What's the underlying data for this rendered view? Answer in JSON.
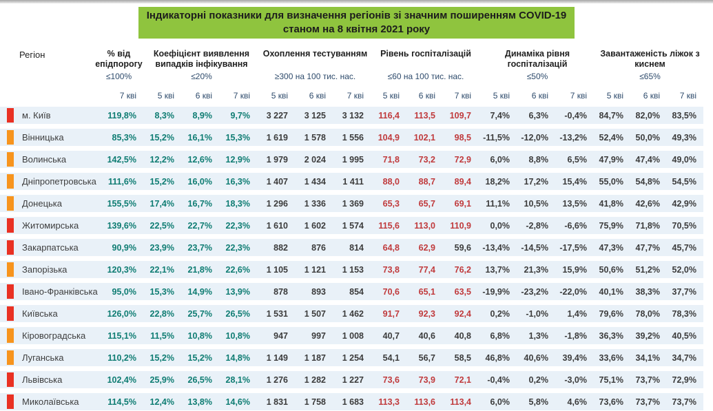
{
  "title": {
    "line1": "Індикаторні показники для визначення регіонів зі значним поширенням COVID-19",
    "line2": "станом на 8 квітня 2021 року"
  },
  "colors": {
    "title_highlight": "#8fc43e",
    "header_navy": "#2d4a6b",
    "row_bg": "#e9f1f8",
    "green_value": "#0e7c72",
    "red_value": "#c03a3c",
    "marker_red": "#e93123",
    "marker_orange": "#f7941d"
  },
  "columns": {
    "region_label": "Регіон",
    "groups": [
      {
        "title": "% від епідпорогу",
        "threshold": "≤100%",
        "dates": [
          "7 кві"
        ]
      },
      {
        "title": "Коефіцієнт виявлення випадків інфікування",
        "threshold": "≤20%",
        "dates": [
          "5 кві",
          "6 кві",
          "7 кві"
        ]
      },
      {
        "title": "Охоплення тестуванням",
        "threshold": "≥300 на 100 тис. нас.",
        "dates": [
          "5 кві",
          "6 кві",
          "7 кві"
        ]
      },
      {
        "title": "Рівень госпіталізацій",
        "threshold": "≤60 на 100 тис. нас.",
        "dates": [
          "5 кві",
          "6 кві",
          "7 кві"
        ]
      },
      {
        "title": "Динаміка рівня госпіталізацій",
        "threshold": "≤50%",
        "dates": [
          "5 кві",
          "6 кві",
          "7 кві"
        ]
      },
      {
        "title": "Завантаженість ліжок з киснем",
        "threshold": "≤65%",
        "dates": [
          "5 кві",
          "6 кві",
          "7 кві"
        ]
      }
    ]
  },
  "table": {
    "hospitalization_red_threshold": 60,
    "marker_legend": {
      "red": "red-risk-marker",
      "orange": "orange-risk-marker"
    },
    "rows": [
      {
        "marker": "red",
        "region": "м. Київ",
        "epid": "119,8%",
        "coef": [
          "8,3%",
          "8,9%",
          "9,7%"
        ],
        "test": [
          "3 227",
          "3 125",
          "3 132"
        ],
        "hosp": [
          "116,4",
          "113,5",
          "109,7"
        ],
        "dyn": [
          "7,4%",
          "6,3%",
          "-0,4%"
        ],
        "beds": [
          "84,7%",
          "82,0%",
          "83,5%"
        ]
      },
      {
        "marker": "orange",
        "region": "Вінницька",
        "epid": "85,3%",
        "coef": [
          "15,2%",
          "16,1%",
          "15,3%"
        ],
        "test": [
          "1 619",
          "1 578",
          "1 556"
        ],
        "hosp": [
          "104,9",
          "102,1",
          "98,5"
        ],
        "dyn": [
          "-11,5%",
          "-12,0%",
          "-13,2%"
        ],
        "beds": [
          "52,4%",
          "50,0%",
          "49,3%"
        ]
      },
      {
        "marker": "orange",
        "region": "Волинська",
        "epid": "142,5%",
        "coef": [
          "12,2%",
          "12,6%",
          "12,9%"
        ],
        "test": [
          "1 979",
          "2 024",
          "1 995"
        ],
        "hosp": [
          "71,8",
          "73,2",
          "72,9"
        ],
        "dyn": [
          "6,0%",
          "8,8%",
          "6,5%"
        ],
        "beds": [
          "47,9%",
          "47,4%",
          "49,0%"
        ]
      },
      {
        "marker": "orange",
        "region": "Дніпропетровська",
        "epid": "111,6%",
        "coef": [
          "15,2%",
          "16,0%",
          "16,3%"
        ],
        "test": [
          "1 407",
          "1 434",
          "1 411"
        ],
        "hosp": [
          "88,0",
          "88,7",
          "89,4"
        ],
        "dyn": [
          "18,2%",
          "17,2%",
          "15,4%"
        ],
        "beds": [
          "55,0%",
          "54,8%",
          "54,5%"
        ]
      },
      {
        "marker": "orange",
        "region": "Донецька",
        "epid": "155,5%",
        "coef": [
          "17,4%",
          "16,7%",
          "18,3%"
        ],
        "test": [
          "1 296",
          "1 336",
          "1 369"
        ],
        "hosp": [
          "65,3",
          "65,7",
          "69,1"
        ],
        "dyn": [
          "11,1%",
          "10,5%",
          "13,5%"
        ],
        "beds": [
          "41,8%",
          "42,6%",
          "42,9%"
        ]
      },
      {
        "marker": "red",
        "region": "Житомирська",
        "epid": "139,6%",
        "coef": [
          "22,5%",
          "22,7%",
          "22,3%"
        ],
        "test": [
          "1 610",
          "1 602",
          "1 574"
        ],
        "hosp": [
          "115,6",
          "113,0",
          "110,9"
        ],
        "dyn": [
          "0,0%",
          "-2,8%",
          "-6,6%"
        ],
        "beds": [
          "75,9%",
          "71,8%",
          "70,5%"
        ]
      },
      {
        "marker": "red",
        "region": "Закарпатська",
        "epid": "90,9%",
        "coef": [
          "23,9%",
          "23,7%",
          "22,3%"
        ],
        "test": [
          "882",
          "876",
          "814"
        ],
        "hosp": [
          "64,8",
          "62,9",
          "59,6"
        ],
        "dyn": [
          "-13,4%",
          "-14,5%",
          "-17,5%"
        ],
        "beds": [
          "47,3%",
          "47,7%",
          "45,7%"
        ]
      },
      {
        "marker": "orange",
        "region": "Запорізька",
        "epid": "120,3%",
        "coef": [
          "22,1%",
          "21,8%",
          "22,6%"
        ],
        "test": [
          "1 105",
          "1 121",
          "1 153"
        ],
        "hosp": [
          "73,8",
          "77,4",
          "76,2"
        ],
        "dyn": [
          "13,7%",
          "21,3%",
          "15,9%"
        ],
        "beds": [
          "50,6%",
          "51,2%",
          "52,0%"
        ]
      },
      {
        "marker": "red",
        "region": "Івано-Франківська",
        "epid": "95,0%",
        "coef": [
          "15,3%",
          "14,9%",
          "13,9%"
        ],
        "test": [
          "878",
          "893",
          "854"
        ],
        "hosp": [
          "70,6",
          "65,1",
          "63,5"
        ],
        "dyn": [
          "-19,9%",
          "-23,2%",
          "-22,0%"
        ],
        "beds": [
          "40,1%",
          "38,3%",
          "37,7%"
        ]
      },
      {
        "marker": "red",
        "region": "Київська",
        "epid": "126,0%",
        "coef": [
          "22,8%",
          "25,7%",
          "26,5%"
        ],
        "test": [
          "1 531",
          "1 507",
          "1 462"
        ],
        "hosp": [
          "91,7",
          "92,3",
          "92,4"
        ],
        "dyn": [
          "0,2%",
          "-1,0%",
          "1,4%"
        ],
        "beds": [
          "79,6%",
          "78,0%",
          "78,3%"
        ]
      },
      {
        "marker": "orange",
        "region": "Кіровоградська",
        "epid": "115,1%",
        "coef": [
          "11,5%",
          "10,8%",
          "10,8%"
        ],
        "test": [
          "947",
          "997",
          "1 008"
        ],
        "hosp": [
          "40,7",
          "40,6",
          "40,8"
        ],
        "dyn": [
          "6,8%",
          "1,3%",
          "-1,8%"
        ],
        "beds": [
          "36,3%",
          "39,2%",
          "40,5%"
        ]
      },
      {
        "marker": "orange",
        "region": "Луганська",
        "epid": "110,2%",
        "coef": [
          "15,2%",
          "15,2%",
          "14,8%"
        ],
        "test": [
          "1 149",
          "1 187",
          "1 254"
        ],
        "hosp": [
          "54,1",
          "56,7",
          "58,5"
        ],
        "dyn": [
          "46,8%",
          "40,6%",
          "39,4%"
        ],
        "beds": [
          "33,6%",
          "34,1%",
          "34,7%"
        ]
      },
      {
        "marker": "red",
        "region": "Львівська",
        "epid": "102,4%",
        "coef": [
          "25,9%",
          "26,5%",
          "28,1%"
        ],
        "test": [
          "1 276",
          "1 282",
          "1 227"
        ],
        "hosp": [
          "73,6",
          "73,9",
          "72,1"
        ],
        "dyn": [
          "-0,4%",
          "0,2%",
          "-3,0%"
        ],
        "beds": [
          "75,1%",
          "73,7%",
          "72,9%"
        ]
      },
      {
        "marker": "red",
        "region": "Миколаївська",
        "epid": "114,5%",
        "coef": [
          "12,4%",
          "13,8%",
          "14,6%"
        ],
        "test": [
          "1 831",
          "1 758",
          "1 683"
        ],
        "hosp": [
          "113,3",
          "113,6",
          "113,4"
        ],
        "dyn": [
          "6,0%",
          "5,8%",
          "4,6%"
        ],
        "beds": [
          "73,6%",
          "73,7%",
          "73,7%"
        ]
      }
    ]
  }
}
